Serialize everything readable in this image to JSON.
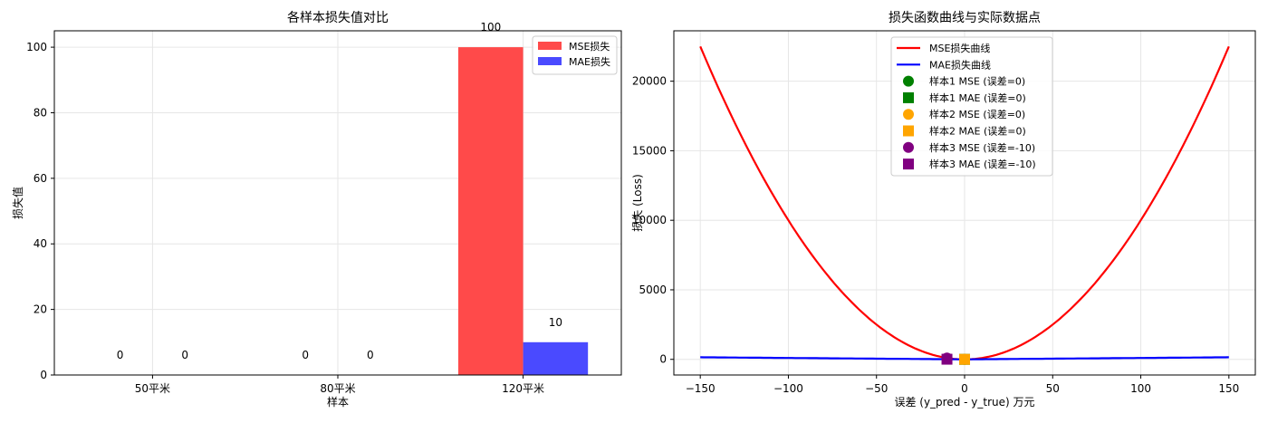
{
  "chart_data": [
    {
      "type": "bar",
      "title": "各样本损失值对比",
      "xlabel": "样本",
      "ylabel": "损失值",
      "categories": [
        "50平米",
        "80平米",
        "120平米"
      ],
      "series": [
        {
          "name": "MSE损失",
          "values": [
            0,
            0,
            100
          ],
          "color": "#ff4a4a"
        },
        {
          "name": "MAE损失",
          "values": [
            0,
            0,
            10
          ],
          "color": "#4a4aff"
        }
      ],
      "bar_labels": [
        [
          "0",
          "0",
          "100"
        ],
        [
          "0",
          "0",
          "10"
        ]
      ],
      "yticks": [
        0,
        20,
        40,
        60,
        80,
        100
      ],
      "ylim": [
        0,
        105
      ],
      "grid": true,
      "legend_position": "upper right"
    },
    {
      "type": "line",
      "title": "损失函数曲线与实际数据点",
      "xlabel": "误差 (y_pred - y_true) 万元",
      "ylabel": "损失 (Loss)",
      "x_range": [
        -150,
        150
      ],
      "xticks": [
        -150,
        -100,
        -50,
        0,
        50,
        100,
        150
      ],
      "yticks": [
        0,
        5000,
        10000,
        15000,
        20000
      ],
      "ylim": [
        -1125,
        23625
      ],
      "grid": true,
      "legend_position": "upper center",
      "series": [
        {
          "name": "MSE损失曲线",
          "kind": "line",
          "formula": "x^2",
          "color": "#ff0000",
          "endpoints": [
            [
              -150,
              22500
            ],
            [
              0,
              0
            ],
            [
              150,
              22500
            ]
          ]
        },
        {
          "name": "MAE损失曲线",
          "kind": "line",
          "formula": "|x|",
          "color": "#0000ff",
          "endpoints": [
            [
              -150,
              150
            ],
            [
              0,
              0
            ],
            [
              150,
              150
            ]
          ]
        },
        {
          "name": "样本1 MSE (误差=0)",
          "kind": "marker",
          "marker": "circle",
          "color": "#008000",
          "x": 0,
          "y": 0
        },
        {
          "name": "样本1 MAE (误差=0)",
          "kind": "marker",
          "marker": "square",
          "color": "#008000",
          "x": 0,
          "y": 0
        },
        {
          "name": "样本2 MSE (误差=0)",
          "kind": "marker",
          "marker": "circle",
          "color": "#ffa500",
          "x": 0,
          "y": 0
        },
        {
          "name": "样本2 MAE (误差=0)",
          "kind": "marker",
          "marker": "square",
          "color": "#ffa500",
          "x": 0,
          "y": 0
        },
        {
          "name": "样本3 MSE (误差=-10)",
          "kind": "marker",
          "marker": "circle",
          "color": "#800080",
          "x": -10,
          "y": 100
        },
        {
          "name": "样本3 MAE (误差=-10)",
          "kind": "marker",
          "marker": "square",
          "color": "#800080",
          "x": -10,
          "y": 10
        }
      ]
    }
  ]
}
